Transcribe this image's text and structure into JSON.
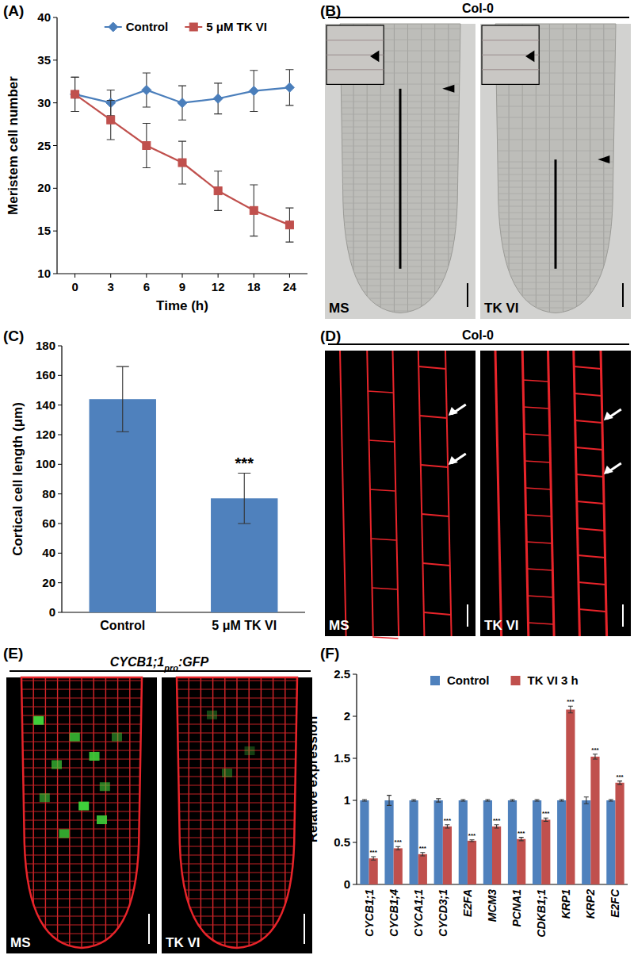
{
  "panel_labels": [
    "(A)",
    "(B)",
    "(C)",
    "(D)",
    "(E)",
    "(F)"
  ],
  "chart_data": [
    {
      "type": "line",
      "x_label": "Time (h)",
      "y_label": "Meristem cell number",
      "categories": [
        "0",
        "3",
        "6",
        "9",
        "12",
        "18",
        "24"
      ],
      "ylim": [
        10,
        40
      ],
      "yticks": [
        10,
        15,
        20,
        25,
        30,
        35,
        40
      ],
      "legend": "top",
      "series": [
        {
          "name": "Control",
          "color": "#4a7ebb",
          "marker": "diamond",
          "values": [
            31,
            30,
            31.5,
            30,
            30.5,
            31.4,
            31.8
          ],
          "errors": [
            2,
            1.5,
            2,
            2,
            1.8,
            2.4,
            2.1
          ]
        },
        {
          "name": "5 μM TK VI",
          "color": "#c0504d",
          "marker": "square",
          "values": [
            31,
            28,
            25,
            23,
            19.7,
            17.4,
            15.7
          ],
          "errors": [
            2,
            2.3,
            2.6,
            2.5,
            2.3,
            3,
            2
          ]
        }
      ]
    },
    {
      "type": "bar",
      "y_label": "Cortical cell length (μm)",
      "categories": [
        "Control",
        "5 μM TK VI"
      ],
      "values": [
        144,
        77
      ],
      "errors": [
        22,
        17
      ],
      "color": "#4f81bd",
      "ylim": [
        0,
        180
      ],
      "yticks": [
        0,
        20,
        40,
        60,
        80,
        100,
        120,
        140,
        160,
        180
      ],
      "annotations": [
        null,
        "***"
      ]
    },
    {
      "type": "bar",
      "y_label": "Relative expression",
      "categories": [
        "CYCB1;1",
        "CYCB1;4",
        "CYCA1;1",
        "CYCD3;1",
        "E2FA",
        "MCM3",
        "PCNA1",
        "CDKB1;1",
        "KRP1",
        "KRP2",
        "E2FC"
      ],
      "ylim": [
        0,
        2.5
      ],
      "yticks": [
        0,
        0.5,
        1,
        1.5,
        2,
        2.5
      ],
      "legend": "top",
      "series": [
        {
          "name": "Control",
          "color": "#4f81bd",
          "values": [
            1,
            1,
            1,
            1,
            1,
            1,
            1,
            1,
            1,
            1,
            1
          ],
          "errors": [
            0.01,
            0.06,
            0.01,
            0.02,
            0.01,
            0.01,
            0.01,
            0.01,
            0.01,
            0.04,
            0.01
          ]
        },
        {
          "name": "TK VI 3 h",
          "color": "#c0504d",
          "values": [
            0.31,
            0.43,
            0.36,
            0.69,
            0.52,
            0.69,
            0.54,
            0.77,
            2.08,
            1.52,
            1.21
          ],
          "errors": [
            0.02,
            0.02,
            0.02,
            0.02,
            0.01,
            0.02,
            0.02,
            0.02,
            0.04,
            0.03,
            0.02
          ],
          "annotations": [
            "***",
            "***",
            "***",
            "***",
            "***",
            "***",
            "***",
            "***",
            "***",
            "***",
            "***"
          ]
        }
      ]
    }
  ],
  "images": [
    {
      "header": "Col-0",
      "left": "MS",
      "right": "TK VI"
    },
    {
      "header": "Col-0",
      "left": "MS",
      "right": "TK VI"
    },
    {
      "header_parts": [
        "CYCB1;1",
        "pro",
        ":GFP"
      ],
      "left": "MS",
      "right": "TK VI"
    }
  ]
}
